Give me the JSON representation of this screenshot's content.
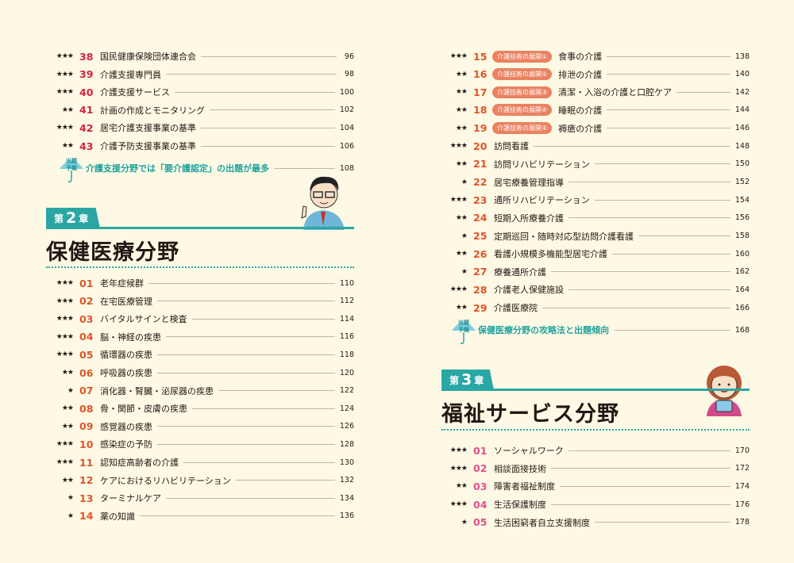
{
  "colors": {
    "background": "#fdf9e4",
    "teal": "#2aa7a4",
    "chapter1_number": "#d6233e",
    "chapter2_number": "#e0542a",
    "chapter3_number": "#e0508e",
    "badge": "#ea8262"
  },
  "left_page": {
    "chapter1_items": [
      {
        "stars": "★★★",
        "num": "38",
        "title": "国民健康保険団体連合会",
        "page": "96"
      },
      {
        "stars": "★★★",
        "num": "39",
        "title": "介護支援専門員",
        "page": "98"
      },
      {
        "stars": "★★★",
        "num": "40",
        "title": "介護支援サービス",
        "page": "100"
      },
      {
        "stars": "★★",
        "num": "41",
        "title": "計画の作成とモニタリング",
        "page": "102"
      },
      {
        "stars": "★★★",
        "num": "42",
        "title": "居宅介護支援事業の基準",
        "page": "104"
      },
      {
        "stars": "★★",
        "num": "43",
        "title": "介護予防支援事業の基準",
        "page": "106"
      }
    ],
    "chapter1_tip": {
      "icon": "umbrella-icon",
      "icon_text": "出題予報",
      "title": "介護支援分野では「要介護認定」の出題が最多",
      "page": "108"
    },
    "chapter2": {
      "label_prefix": "第",
      "number": "2",
      "label_suffix": "章",
      "title": "保健医療分野"
    },
    "chapter2_items": [
      {
        "stars": "★★★",
        "num": "01",
        "title": "老年症候群",
        "page": "110"
      },
      {
        "stars": "★★★",
        "num": "02",
        "title": "在宅医療管理",
        "page": "112"
      },
      {
        "stars": "★★★",
        "num": "03",
        "title": "バイタルサインと検査",
        "page": "114"
      },
      {
        "stars": "★★★",
        "num": "04",
        "title": "脳・神経の疾患",
        "page": "116"
      },
      {
        "stars": "★★★",
        "num": "05",
        "title": "循環器の疾患",
        "page": "118"
      },
      {
        "stars": "★★",
        "num": "06",
        "title": "呼吸器の疾患",
        "page": "120"
      },
      {
        "stars": "★",
        "num": "07",
        "title": "消化器・腎臓・泌尿器の疾患",
        "page": "122"
      },
      {
        "stars": "★★",
        "num": "08",
        "title": "骨・関節・皮膚の疾患",
        "page": "124"
      },
      {
        "stars": "★★",
        "num": "09",
        "title": "感覚器の疾患",
        "page": "126"
      },
      {
        "stars": "★★★",
        "num": "10",
        "title": "感染症の予防",
        "page": "128"
      },
      {
        "stars": "★★★",
        "num": "11",
        "title": "認知症高齢者の介護",
        "page": "130"
      },
      {
        "stars": "★★",
        "num": "12",
        "title": "ケアにおけるリハビリテーション",
        "page": "132"
      },
      {
        "stars": "★",
        "num": "13",
        "title": "ターミナルケア",
        "page": "134"
      },
      {
        "stars": "★",
        "num": "14",
        "title": "薬の知識",
        "page": "136"
      }
    ]
  },
  "right_page": {
    "chapter2_items": [
      {
        "stars": "★★★",
        "num": "15",
        "badge": "介護技術の展開①",
        "title": "食事の介護",
        "page": "138"
      },
      {
        "stars": "★★",
        "num": "16",
        "badge": "介護技術の展開②",
        "title": "排泄の介護",
        "page": "140"
      },
      {
        "stars": "★★",
        "num": "17",
        "badge": "介護技術の展開③",
        "title": "清潔・入浴の介護と口腔ケア",
        "page": "142"
      },
      {
        "stars": "★★",
        "num": "18",
        "badge": "介護技術の展開④",
        "title": "睡眠の介護",
        "page": "144"
      },
      {
        "stars": "★★",
        "num": "19",
        "badge": "介護技術の展開⑤",
        "title": "褥瘡の介護",
        "page": "146"
      },
      {
        "stars": "★★★",
        "num": "20",
        "title": "訪問看護",
        "page": "148"
      },
      {
        "stars": "★★",
        "num": "21",
        "title": "訪問リハビリテーション",
        "page": "150"
      },
      {
        "stars": "★",
        "num": "22",
        "title": "居宅療養管理指導",
        "page": "152"
      },
      {
        "stars": "★★★",
        "num": "23",
        "title": "通所リハビリテーション",
        "page": "154"
      },
      {
        "stars": "★★",
        "num": "24",
        "title": "短期入所療養介護",
        "page": "156"
      },
      {
        "stars": "★",
        "num": "25",
        "title": "定期巡回・随時対応型訪問介護看護",
        "page": "158"
      },
      {
        "stars": "★★",
        "num": "26",
        "title": "看護小規模多機能型居宅介護",
        "page": "160"
      },
      {
        "stars": "★",
        "num": "27",
        "title": "療養通所介護",
        "page": "162"
      },
      {
        "stars": "★★★",
        "num": "28",
        "title": "介護老人保健施設",
        "page": "164"
      },
      {
        "stars": "★★",
        "num": "29",
        "title": "介護医療院",
        "page": "166"
      }
    ],
    "chapter2_tip": {
      "icon": "umbrella-icon",
      "icon_text": "出題予報",
      "title": "保健医療分野の攻略法と出題傾向",
      "page": "168"
    },
    "chapter3": {
      "label_prefix": "第",
      "number": "3",
      "label_suffix": "章",
      "title": "福祉サービス分野"
    },
    "chapter3_items": [
      {
        "stars": "★★★",
        "num": "01",
        "title": "ソーシャルワーク",
        "page": "170"
      },
      {
        "stars": "★★★",
        "num": "02",
        "title": "相談面接技術",
        "page": "172"
      },
      {
        "stars": "★★",
        "num": "03",
        "title": "障害者福祉制度",
        "page": "174"
      },
      {
        "stars": "★★★",
        "num": "04",
        "title": "生活保護制度",
        "page": "176"
      },
      {
        "stars": "★",
        "num": "05",
        "title": "生活困窮者自立支援制度",
        "page": "178"
      }
    ]
  }
}
